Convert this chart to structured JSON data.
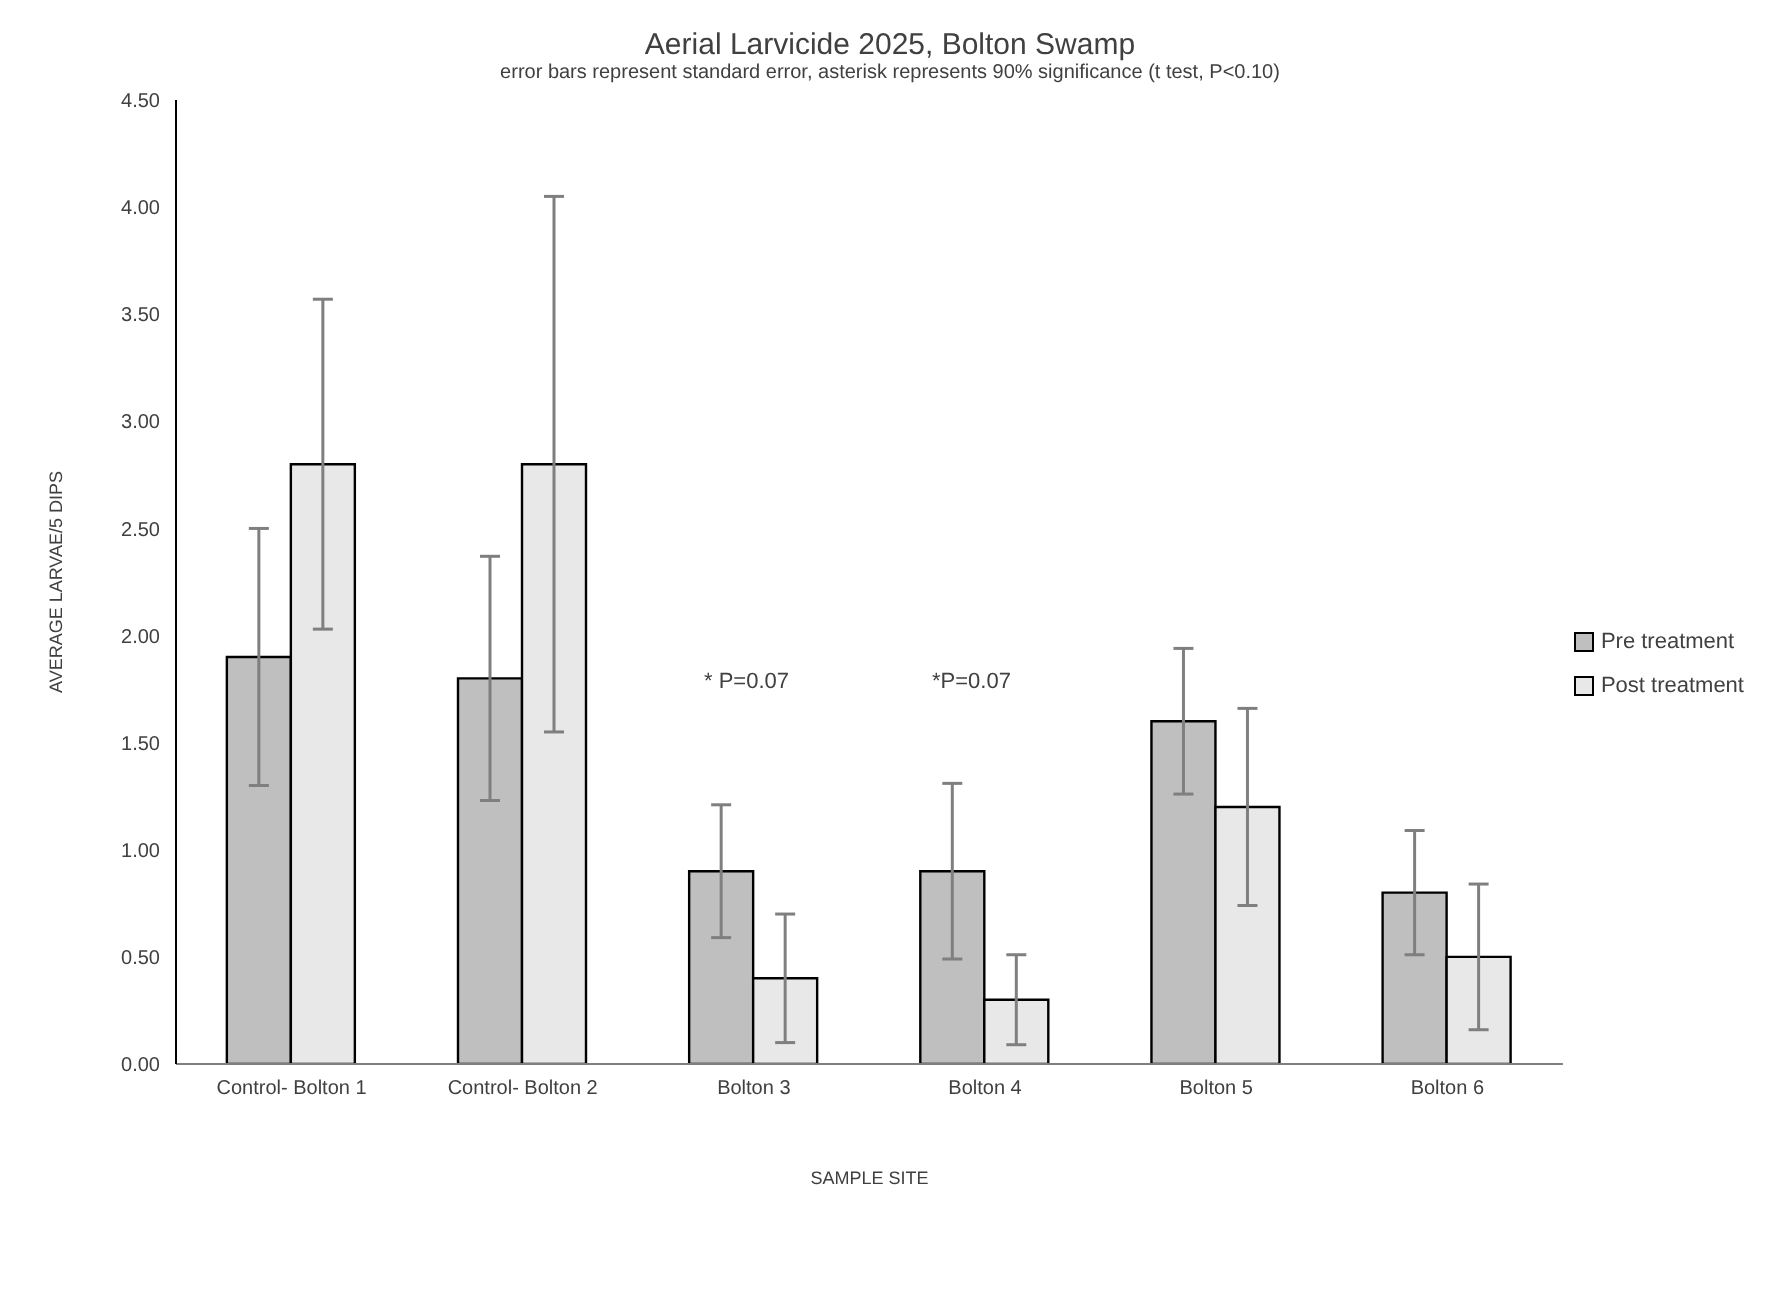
{
  "chart_data": {
    "type": "bar",
    "title": "Aerial Larvicide 2025, Bolton Swamp",
    "subtitle": "error bars represent standard error, asterisk represents 90% significance (t test, P<0.10)",
    "xlabel": "SAMPLE SITE",
    "ylabel": "AVERAGE LARVAE/5 DIPS",
    "categories": [
      "Control- Bolton 1",
      "Control- Bolton 2",
      "Bolton 3",
      "Bolton 4",
      "Bolton 5",
      "Bolton 6"
    ],
    "series": [
      {
        "name": "Pre treatment",
        "color": "#bfbfbf",
        "values": [
          1.9,
          1.8,
          0.9,
          0.9,
          1.6,
          0.8
        ],
        "errors": [
          0.6,
          0.57,
          0.31,
          0.41,
          0.34,
          0.29
        ]
      },
      {
        "name": "Post treatment",
        "color": "#e8e8e8",
        "values": [
          2.8,
          2.8,
          0.4,
          0.3,
          1.2,
          0.5
        ],
        "errors": [
          0.77,
          1.25,
          0.3,
          0.21,
          0.46,
          0.34
        ]
      }
    ],
    "ylim": [
      0,
      4.5
    ],
    "yticks": [
      {
        "value": 0,
        "label": "0.00"
      },
      {
        "value": 0.5,
        "label": "0.50"
      },
      {
        "value": 1,
        "label": "1.00"
      },
      {
        "value": 1.5,
        "label": "1.50"
      },
      {
        "value": 2,
        "label": "2.00"
      },
      {
        "value": 2.5,
        "label": "2.50"
      },
      {
        "value": 3,
        "label": "3.00"
      },
      {
        "value": 3.5,
        "label": "3.50"
      },
      {
        "value": 4,
        "label": "4.00"
      },
      {
        "value": 4.5,
        "label": "4.50"
      }
    ],
    "annotations": [
      "* P=0.07",
      "*P=0.07"
    ],
    "grid": false,
    "legend": "right"
  }
}
